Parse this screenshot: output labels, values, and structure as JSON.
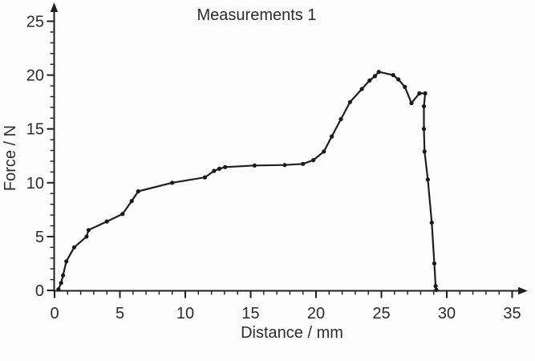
{
  "figure": {
    "title": "Measurements 1",
    "xlabel": "Distance / mm",
    "ylabel": "Force / N"
  },
  "colors": {
    "line": "#1f1f1f",
    "marker": "#1a1a1a",
    "axis": "#1f1f1f",
    "text": "#2b2b2b",
    "background": "#fdfdfd"
  },
  "chart_data": {
    "type": "line",
    "title": "Measurements 1",
    "xlabel": "Distance / mm",
    "ylabel": "Force / N",
    "xlim": [
      0,
      36
    ],
    "ylim": [
      0,
      26
    ],
    "x_major_ticks": [
      0,
      5,
      10,
      15,
      20,
      25,
      30,
      35
    ],
    "y_major_ticks": [
      0,
      5,
      10,
      15,
      20,
      25
    ],
    "x_minor_step": 1,
    "y_minor_step": 1,
    "grid": false,
    "legend_position": "none",
    "marker_style": "filled-dot",
    "axis_arrows": true,
    "series": [
      {
        "name": "Measurements 1",
        "points": [
          [
            0.3,
            0.1
          ],
          [
            0.5,
            0.7
          ],
          [
            0.65,
            1.4
          ],
          [
            0.9,
            2.7
          ],
          [
            1.5,
            4.0
          ],
          [
            2.45,
            5.0
          ],
          [
            2.6,
            5.6
          ],
          [
            4.0,
            6.4
          ],
          [
            5.2,
            7.1
          ],
          [
            5.9,
            8.3
          ],
          [
            6.4,
            9.2
          ],
          [
            9.0,
            10.0
          ],
          [
            11.5,
            10.5
          ],
          [
            12.2,
            11.1
          ],
          [
            12.6,
            11.3
          ],
          [
            13.05,
            11.45
          ],
          [
            15.3,
            11.6
          ],
          [
            17.6,
            11.65
          ],
          [
            19.0,
            11.75
          ],
          [
            19.8,
            12.1
          ],
          [
            20.6,
            12.9
          ],
          [
            21.2,
            14.3
          ],
          [
            21.9,
            15.9
          ],
          [
            22.6,
            17.5
          ],
          [
            23.5,
            18.7
          ],
          [
            24.1,
            19.5
          ],
          [
            24.5,
            19.9
          ],
          [
            24.8,
            20.3
          ],
          [
            25.9,
            20.0
          ],
          [
            26.3,
            19.6
          ],
          [
            26.8,
            18.9
          ],
          [
            27.3,
            17.4
          ],
          [
            27.9,
            18.3
          ],
          [
            28.35,
            18.3
          ],
          [
            28.25,
            17.1
          ],
          [
            28.25,
            15.0
          ],
          [
            28.3,
            12.9
          ],
          [
            28.55,
            10.3
          ],
          [
            28.85,
            6.3
          ],
          [
            29.05,
            2.5
          ],
          [
            29.15,
            0.4
          ],
          [
            29.2,
            0.05
          ]
        ]
      }
    ]
  }
}
